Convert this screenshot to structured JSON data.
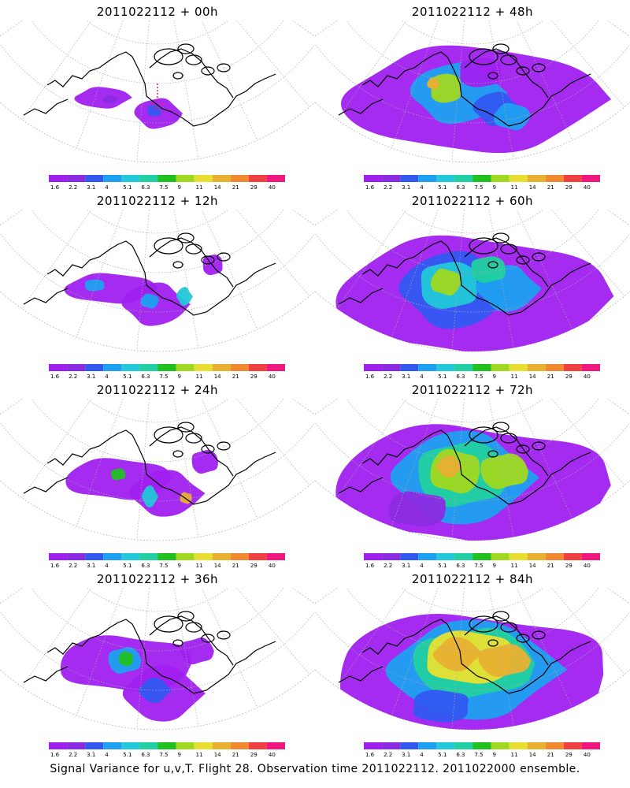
{
  "footer": "Signal Variance for u,v,T. Flight 28. Observation time 2011022112. 2011022000 ensemble.",
  "colorbar": {
    "ticks": [
      "1.6",
      "2.2",
      "3.1",
      "4",
      "5.1",
      "6.3",
      "7.5",
      "9",
      "11",
      "14",
      "21",
      "29",
      "40"
    ],
    "colors": [
      "#a020f0",
      "#8b2be2",
      "#3258f0",
      "#1ea0f0",
      "#20c8d8",
      "#20d0a0",
      "#20c020",
      "#a0d820",
      "#e8e030",
      "#e8b030",
      "#f08830",
      "#f04040",
      "#f01880"
    ]
  },
  "panels": [
    {
      "title": "2011022112 + 00h",
      "lead": 0
    },
    {
      "title": "2011022112 + 48h",
      "lead": 48
    },
    {
      "title": "2011022112 + 12h",
      "lead": 12
    },
    {
      "title": "2011022112 + 60h",
      "lead": 60
    },
    {
      "title": "2011022112 + 24h",
      "lead": 24
    },
    {
      "title": "2011022112 + 72h",
      "lead": 72
    },
    {
      "title": "2011022112 + 36h",
      "lead": 36
    },
    {
      "title": "2011022112 + 84h",
      "lead": 84
    }
  ]
}
